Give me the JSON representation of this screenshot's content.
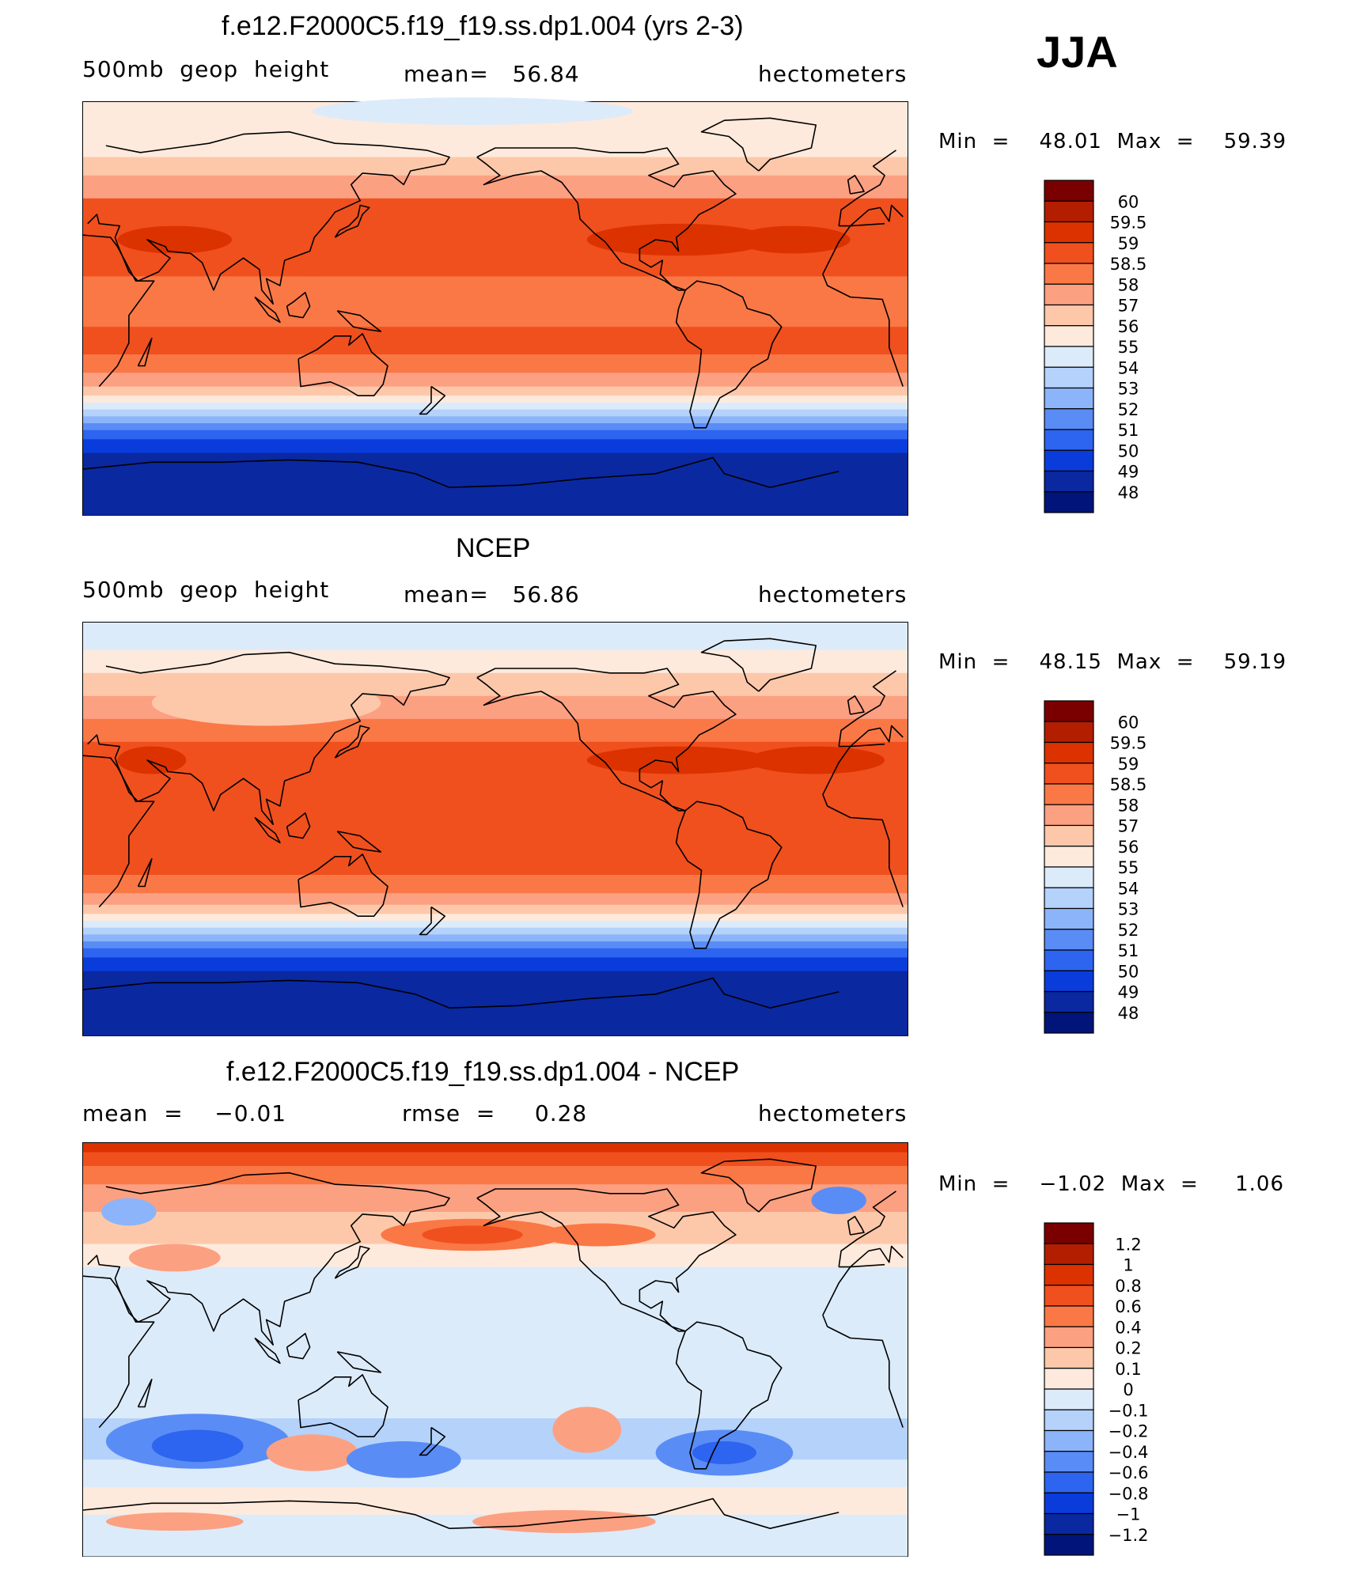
{
  "season": "JJA",
  "panels": [
    {
      "title": "f.e12.F2000C5.f19_f19.ss.dp1.004 (yrs 2-3)",
      "left_label": "500mb  geop  height",
      "center_label": "mean=   56.84",
      "right_label": "hectometers",
      "minmax": "Min  =    48.01  Max  =    59.39"
    },
    {
      "title": "NCEP",
      "left_label": "500mb  geop  height",
      "center_label": "mean=   56.86",
      "right_label": "hectometers",
      "minmax": "Min  =    48.15  Max  =    59.19"
    },
    {
      "title": "f.e12.F2000C5.f19_f19.ss.dp1.004 - NCEP",
      "left_label": "mean  =    −0.01",
      "center_label": "rmse  =     0.28",
      "right_label": "hectometers",
      "minmax": "Min  =    −1.02  Max  =     1.06"
    }
  ],
  "chart_data": [
    {
      "type": "heatmap",
      "title": "f.e12.F2000C5.f19_f19.ss.dp1.004 (yrs 2-3)",
      "variable": "500mb geop height",
      "units": "hectometers",
      "mean": 56.84,
      "min": 48.01,
      "max": 59.39,
      "colorbar_levels": [
        "60",
        "59.5",
        "59",
        "58.5",
        "58",
        "57",
        "56",
        "55",
        "54",
        "53",
        "52",
        "51",
        "50",
        "49",
        "48"
      ]
    },
    {
      "type": "heatmap",
      "title": "NCEP",
      "variable": "500mb geop height",
      "units": "hectometers",
      "mean": 56.86,
      "min": 48.15,
      "max": 59.19,
      "colorbar_levels": [
        "60",
        "59.5",
        "59",
        "58.5",
        "58",
        "57",
        "56",
        "55",
        "54",
        "53",
        "52",
        "51",
        "50",
        "49",
        "48"
      ]
    },
    {
      "type": "heatmap",
      "title": "f.e12.F2000C5.f19_f19.ss.dp1.004 - NCEP",
      "units": "hectometers",
      "mean": -0.01,
      "rmse": 0.28,
      "min": -1.02,
      "max": 1.06,
      "colorbar_levels": [
        "1.2",
        "1",
        "0.8",
        "0.6",
        "0.4",
        "0.2",
        "0.1",
        "0",
        "−0.1",
        "−0.2",
        "−0.4",
        "−0.6",
        "−0.8",
        "−1",
        "−1.2"
      ]
    }
  ],
  "colors": {
    "bar_colors": [
      "#7a0000",
      "#b41e00",
      "#dc3200",
      "#f0501e",
      "#fa7846",
      "#fca082",
      "#fdc8aa",
      "#feeadc",
      "#dcebfa",
      "#b4d2fa",
      "#8cb4fa",
      "#5a8cf5",
      "#2d64f0",
      "#0a3cdc",
      "#0a28a0",
      "#00147a"
    ],
    "bar_colors_diff": [
      "#7a0000",
      "#b41e00",
      "#dc3200",
      "#f0501e",
      "#fa7846",
      "#fca082",
      "#fdc8aa",
      "#feeadc",
      "#dcebfa",
      "#b4d2fa",
      "#8cb4fa",
      "#5a8cf5",
      "#2d64f0",
      "#0a3cdc",
      "#0a28a0",
      "#00147a"
    ]
  }
}
